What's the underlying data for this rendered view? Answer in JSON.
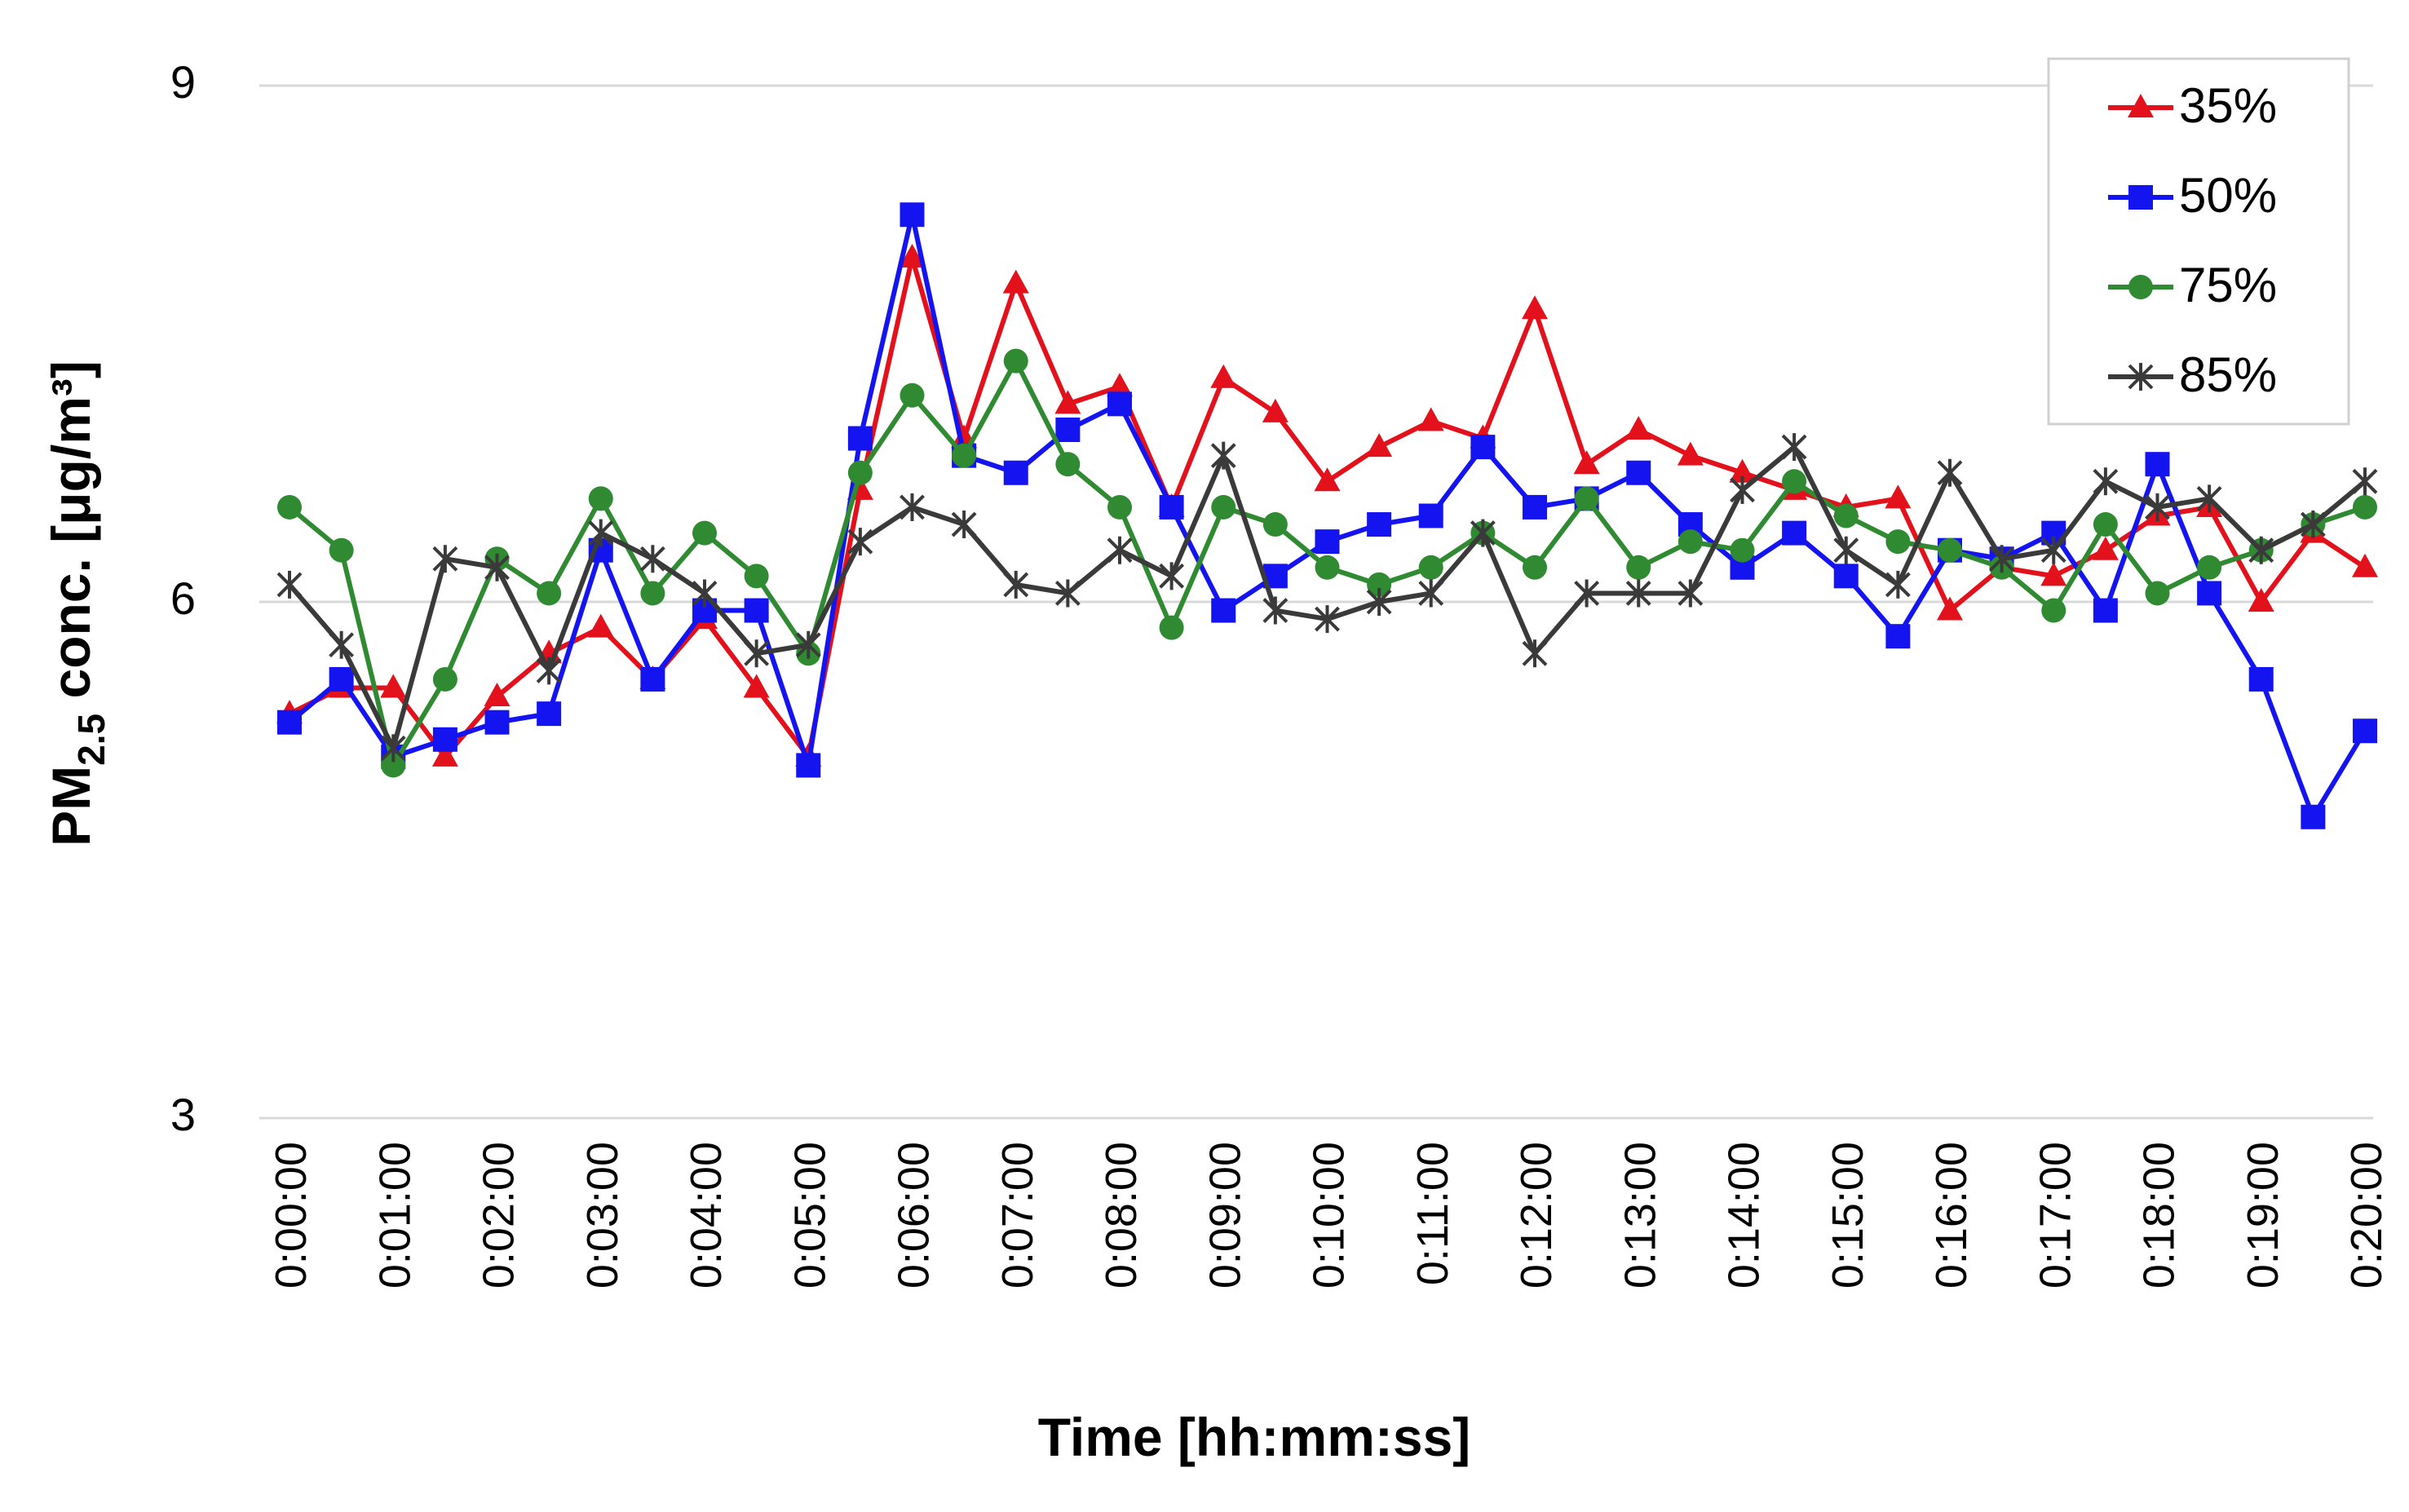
{
  "chart_data": {
    "type": "line",
    "title": "",
    "xlabel": "Time [hh:mm:ss]",
    "ylabel": {
      "prefix": "PM",
      "subscript": "2.5",
      "suffix": " conc. [μg/m³]"
    },
    "ylim": [
      3,
      9
    ],
    "yticks": [
      3,
      6,
      9
    ],
    "grid": true,
    "legend_position": "top-right",
    "x": [
      "0:00:00",
      "0:00:30",
      "0:01:00",
      "0:01:30",
      "0:02:00",
      "0:02:30",
      "0:03:00",
      "0:03:30",
      "0:04:00",
      "0:04:30",
      "0:05:00",
      "0:05:30",
      "0:06:00",
      "0:06:30",
      "0:07:00",
      "0:07:30",
      "0:08:00",
      "0:08:30",
      "0:09:00",
      "0:09:30",
      "0:10:00",
      "0:10:30",
      "0:11:00",
      "0:11:30",
      "0:12:00",
      "0:12:30",
      "0:13:00",
      "0:13:30",
      "0:14:00",
      "0:14:30",
      "0:15:00",
      "0:15:30",
      "0:16:00",
      "0:16:30",
      "0:17:00",
      "0:17:30",
      "0:18:00",
      "0:18:30",
      "0:19:00",
      "0:19:30",
      "0:20:00"
    ],
    "xtick_labels": [
      "0:00:00",
      "0:01:00",
      "0:02:00",
      "0:03:00",
      "0:04:00",
      "0:05:00",
      "0:06:00",
      "0:07:00",
      "0:08:00",
      "0:09:00",
      "0:10:00",
      "0:11:00",
      "0:12:00",
      "0:13:00",
      "0:14:00",
      "0:15:00",
      "0:16:00",
      "0:17:00",
      "0:18:00",
      "0:19:00",
      "0:20:00"
    ],
    "series": [
      {
        "name": "35%",
        "color": "#e3111b",
        "marker": "triangle",
        "values": [
          5.35,
          5.5,
          5.5,
          5.1,
          5.45,
          5.7,
          5.85,
          5.55,
          5.9,
          5.5,
          5.1,
          6.65,
          8.0,
          6.95,
          7.85,
          7.15,
          7.25,
          6.55,
          7.3,
          7.1,
          6.7,
          6.9,
          7.05,
          6.95,
          7.7,
          6.8,
          7.0,
          6.85,
          6.75,
          6.65,
          6.55,
          6.6,
          5.95,
          6.2,
          6.15,
          6.3,
          6.5,
          6.55,
          6.0,
          6.4,
          6.2
        ]
      },
      {
        "name": "50%",
        "color": "#1414f0",
        "marker": "square",
        "values": [
          5.3,
          5.55,
          5.1,
          5.2,
          5.3,
          5.35,
          6.3,
          5.55,
          5.95,
          5.95,
          5.05,
          6.95,
          8.25,
          6.85,
          6.75,
          7.0,
          7.15,
          6.55,
          5.95,
          6.15,
          6.35,
          6.45,
          6.5,
          6.9,
          6.55,
          6.6,
          6.75,
          6.45,
          6.2,
          6.4,
          6.15,
          5.8,
          6.3,
          6.25,
          6.4,
          5.95,
          6.8,
          6.05,
          5.55,
          4.75,
          5.25
        ]
      },
      {
        "name": "75%",
        "color": "#2f8a32",
        "marker": "circle",
        "values": [
          6.55,
          6.3,
          5.05,
          5.55,
          6.25,
          6.05,
          6.6,
          6.05,
          6.4,
          6.15,
          5.7,
          6.75,
          7.2,
          6.85,
          7.4,
          6.8,
          6.55,
          5.85,
          6.55,
          6.45,
          6.2,
          6.1,
          6.2,
          6.4,
          6.2,
          6.6,
          6.2,
          6.35,
          6.3,
          6.7,
          6.5,
          6.35,
          6.3,
          6.2,
          5.95,
          6.45,
          6.05,
          6.2,
          6.3,
          6.45,
          6.55
        ]
      },
      {
        "name": "85%",
        "color": "#3a3a3a",
        "marker": "star",
        "values": [
          6.1,
          5.75,
          5.15,
          6.25,
          6.2,
          5.6,
          6.4,
          6.25,
          6.05,
          5.7,
          5.75,
          6.35,
          6.55,
          6.45,
          6.1,
          6.05,
          6.3,
          6.15,
          6.85,
          5.95,
          5.9,
          6.0,
          6.05,
          6.4,
          5.7,
          6.05,
          6.05,
          6.05,
          6.65,
          6.9,
          6.3,
          6.1,
          6.75,
          6.25,
          6.3,
          6.7,
          6.55,
          6.6,
          6.3,
          6.45,
          6.7
        ]
      }
    ]
  }
}
